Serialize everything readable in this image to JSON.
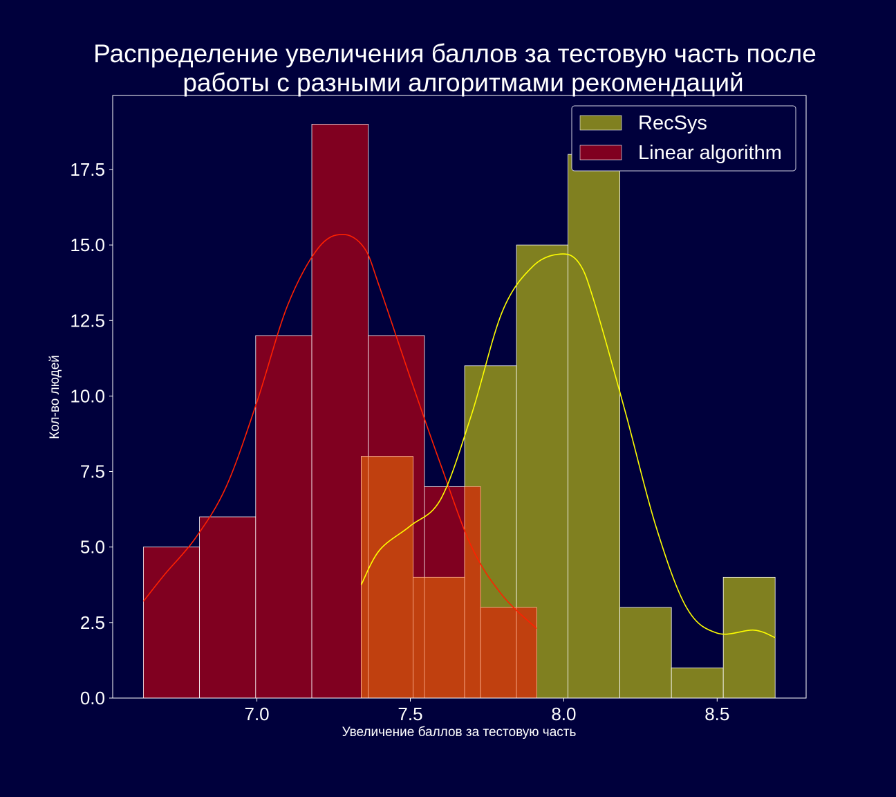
{
  "chart_data": {
    "type": "histogram",
    "title": "Распределение увеличения баллов за тестовую часть после работы с разными алгоритмами рекомендаций",
    "title_lines": [
      "Распределение увеличения баллов за тестовую часть после",
      "работы с разными алгоритмами рекомендаций"
    ],
    "xlabel": "Увеличение баллов за тестовую часть",
    "ylabel": "Кол-во людей",
    "xlim": [
      6.53,
      8.79
    ],
    "ylim": [
      0,
      19.95
    ],
    "x_ticks": [
      "7.0",
      "7.5",
      "8.0",
      "8.5"
    ],
    "x_tick_values": [
      7.0,
      7.5,
      8.0,
      8.5
    ],
    "y_ticks": [
      "0.0",
      "2.5",
      "5.0",
      "7.5",
      "10.0",
      "12.5",
      "15.0",
      "17.5"
    ],
    "y_tick_values": [
      0,
      2.5,
      5,
      7.5,
      10,
      12.5,
      15,
      17.5
    ],
    "grid": false,
    "legend_position": "top-right",
    "series": [
      {
        "name": "Linear algorithm",
        "color": "#800020",
        "kde_color": "#ff2000",
        "bin_edges": [
          6.63,
          6.813,
          6.996,
          7.179,
          7.363,
          7.546,
          7.729,
          7.912
        ],
        "counts": [
          5,
          6,
          12,
          19,
          12,
          7,
          3
        ],
        "kde": [
          [
            6.63,
            3.2
          ],
          [
            6.7,
            4.1
          ],
          [
            6.8,
            5.3
          ],
          [
            6.9,
            7.0
          ],
          [
            7.0,
            9.8
          ],
          [
            7.1,
            13.0
          ],
          [
            7.2,
            14.9
          ],
          [
            7.28,
            15.35
          ],
          [
            7.35,
            14.9
          ],
          [
            7.4,
            13.6
          ],
          [
            7.5,
            10.6
          ],
          [
            7.6,
            7.7
          ],
          [
            7.7,
            5.0
          ],
          [
            7.8,
            3.4
          ],
          [
            7.912,
            2.3
          ]
        ]
      },
      {
        "name": "RecSys",
        "color": "#808020",
        "kde_color": "#ffff00",
        "bin_edges": [
          7.34,
          7.509,
          7.677,
          7.846,
          8.014,
          8.183,
          8.351,
          8.52,
          8.689
        ],
        "counts": [
          8,
          4,
          11,
          15,
          18,
          3,
          1,
          4
        ],
        "kde": [
          [
            7.34,
            3.75
          ],
          [
            7.4,
            4.9
          ],
          [
            7.5,
            5.7
          ],
          [
            7.6,
            6.6
          ],
          [
            7.7,
            9.4
          ],
          [
            7.8,
            12.8
          ],
          [
            7.9,
            14.3
          ],
          [
            7.99,
            14.7
          ],
          [
            8.05,
            14.4
          ],
          [
            8.1,
            13.1
          ],
          [
            8.2,
            9.5
          ],
          [
            8.3,
            5.7
          ],
          [
            8.4,
            3.0
          ],
          [
            8.5,
            2.15
          ],
          [
            8.62,
            2.25
          ],
          [
            8.689,
            2.0
          ]
        ]
      }
    ],
    "overlap_color": "#c0400f"
  }
}
